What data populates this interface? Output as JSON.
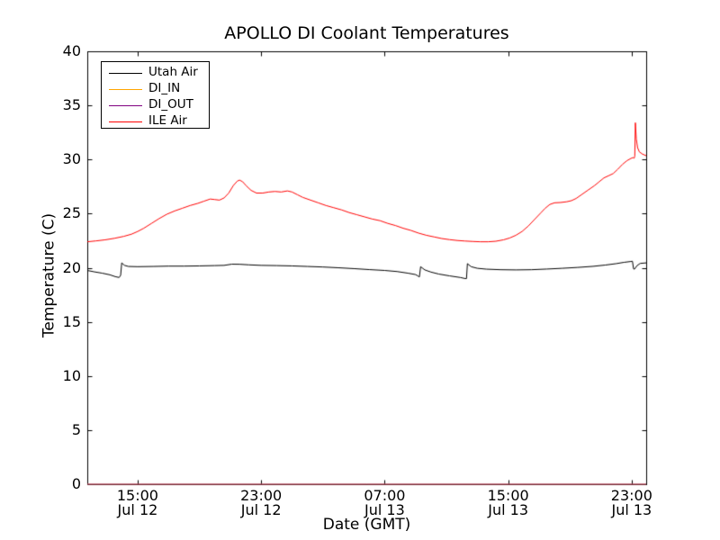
{
  "window": {
    "background": "#ffffff"
  },
  "chart_data": {
    "type": "line",
    "title": "APOLLO DI Coolant Temperatures",
    "xlabel": "Date (GMT)",
    "ylabel": "Temperature (C)",
    "ylim": [
      0,
      40
    ],
    "x_unit": "hours since Jul 12 12:00 GMT",
    "xlim_hours": [
      -0.26,
      35.94
    ],
    "grid": false,
    "legend_position": "upper left",
    "y_ticks": [
      0,
      5,
      10,
      15,
      20,
      25,
      30,
      35,
      40
    ],
    "x_ticks": [
      {
        "t": 3,
        "time": "15:00",
        "date": "Jul 12"
      },
      {
        "t": 11,
        "time": "23:00",
        "date": "Jul 12"
      },
      {
        "t": 19,
        "time": "07:00",
        "date": "Jul 13"
      },
      {
        "t": 27,
        "time": "15:00",
        "date": "Jul 13"
      },
      {
        "t": 35,
        "time": "23:00",
        "date": "Jul 13"
      }
    ],
    "series": [
      {
        "name": "Utah Air",
        "color": "#000000",
        "points": [
          [
            -0.26,
            19.75
          ],
          [
            0.2,
            19.62
          ],
          [
            0.7,
            19.5
          ],
          [
            1.2,
            19.35
          ],
          [
            1.55,
            19.18
          ],
          [
            1.8,
            19.1
          ],
          [
            1.9,
            19.3
          ],
          [
            1.97,
            20.45
          ],
          [
            2.15,
            20.22
          ],
          [
            2.4,
            20.12
          ],
          [
            3,
            20.1
          ],
          [
            4,
            20.12
          ],
          [
            5,
            20.15
          ],
          [
            6,
            20.15
          ],
          [
            7,
            20.17
          ],
          [
            8,
            20.2
          ],
          [
            8.6,
            20.22
          ],
          [
            9.1,
            20.33
          ],
          [
            9.6,
            20.32
          ],
          [
            10.2,
            20.27
          ],
          [
            11,
            20.22
          ],
          [
            12,
            20.2
          ],
          [
            13,
            20.17
          ],
          [
            14,
            20.12
          ],
          [
            15,
            20.07
          ],
          [
            16,
            20.0
          ],
          [
            17,
            19.92
          ],
          [
            18,
            19.83
          ],
          [
            19,
            19.75
          ],
          [
            19.8,
            19.65
          ],
          [
            20.5,
            19.5
          ],
          [
            21,
            19.37
          ],
          [
            21.18,
            19.22
          ],
          [
            21.25,
            19.15
          ],
          [
            21.33,
            20.1
          ],
          [
            21.6,
            19.8
          ],
          [
            22,
            19.6
          ],
          [
            22.5,
            19.42
          ],
          [
            23.2,
            19.25
          ],
          [
            23.9,
            19.1
          ],
          [
            24.22,
            19.0
          ],
          [
            24.3,
            19.0
          ],
          [
            24.36,
            20.38
          ],
          [
            24.6,
            20.1
          ],
          [
            25,
            19.95
          ],
          [
            25.6,
            19.87
          ],
          [
            26.5,
            19.82
          ],
          [
            27.5,
            19.8
          ],
          [
            28.5,
            19.82
          ],
          [
            29.5,
            19.88
          ],
          [
            30.5,
            19.95
          ],
          [
            31.5,
            20.03
          ],
          [
            32.5,
            20.13
          ],
          [
            33.3,
            20.25
          ],
          [
            34,
            20.38
          ],
          [
            34.5,
            20.5
          ],
          [
            34.9,
            20.57
          ],
          [
            35.05,
            20.6
          ],
          [
            35.12,
            19.9
          ],
          [
            35.18,
            19.87
          ],
          [
            35.35,
            20.2
          ],
          [
            35.55,
            20.4
          ],
          [
            35.94,
            20.45
          ]
        ]
      },
      {
        "name": "DI_IN",
        "color": "#ffa500",
        "points": [
          [
            -0.26,
            0
          ],
          [
            35.94,
            0
          ]
        ]
      },
      {
        "name": "DI_OUT",
        "color": "#800080",
        "points": [
          [
            -0.26,
            0
          ],
          [
            35.94,
            0
          ]
        ]
      },
      {
        "name": "ILE Air",
        "color": "#ff0000",
        "points": [
          [
            -0.26,
            22.4
          ],
          [
            0.3,
            22.48
          ],
          [
            0.9,
            22.58
          ],
          [
            1.5,
            22.72
          ],
          [
            2.1,
            22.9
          ],
          [
            2.6,
            23.1
          ],
          [
            3,
            23.35
          ],
          [
            3.4,
            23.65
          ],
          [
            3.9,
            24.1
          ],
          [
            4.4,
            24.55
          ],
          [
            4.9,
            24.95
          ],
          [
            5.4,
            25.25
          ],
          [
            5.9,
            25.5
          ],
          [
            6.4,
            25.75
          ],
          [
            6.9,
            25.95
          ],
          [
            7.3,
            26.15
          ],
          [
            7.7,
            26.35
          ],
          [
            8,
            26.3
          ],
          [
            8.3,
            26.25
          ],
          [
            8.6,
            26.45
          ],
          [
            8.9,
            26.9
          ],
          [
            9.2,
            27.6
          ],
          [
            9.45,
            28.0
          ],
          [
            9.6,
            28.1
          ],
          [
            9.8,
            27.95
          ],
          [
            10.05,
            27.55
          ],
          [
            10.35,
            27.15
          ],
          [
            10.7,
            26.9
          ],
          [
            11.1,
            26.9
          ],
          [
            11.5,
            27.0
          ],
          [
            11.9,
            27.05
          ],
          [
            12.3,
            27.0
          ],
          [
            12.7,
            27.1
          ],
          [
            13,
            27.0
          ],
          [
            13.35,
            26.75
          ],
          [
            13.7,
            26.5
          ],
          [
            14.2,
            26.25
          ],
          [
            14.7,
            26.0
          ],
          [
            15.2,
            25.75
          ],
          [
            15.7,
            25.55
          ],
          [
            16.2,
            25.35
          ],
          [
            16.7,
            25.1
          ],
          [
            17.2,
            24.9
          ],
          [
            17.7,
            24.7
          ],
          [
            18.2,
            24.5
          ],
          [
            18.7,
            24.35
          ],
          [
            19.2,
            24.1
          ],
          [
            19.7,
            23.9
          ],
          [
            20.2,
            23.65
          ],
          [
            20.7,
            23.45
          ],
          [
            21.2,
            23.2
          ],
          [
            21.7,
            23.0
          ],
          [
            22.2,
            22.85
          ],
          [
            22.7,
            22.7
          ],
          [
            23.2,
            22.6
          ],
          [
            23.7,
            22.52
          ],
          [
            24.2,
            22.47
          ],
          [
            24.7,
            22.43
          ],
          [
            25.2,
            22.4
          ],
          [
            25.7,
            22.4
          ],
          [
            26.2,
            22.45
          ],
          [
            26.7,
            22.58
          ],
          [
            27.1,
            22.75
          ],
          [
            27.5,
            23.0
          ],
          [
            27.9,
            23.35
          ],
          [
            28.3,
            23.85
          ],
          [
            28.7,
            24.45
          ],
          [
            29.1,
            25.05
          ],
          [
            29.4,
            25.5
          ],
          [
            29.7,
            25.85
          ],
          [
            30,
            26.0
          ],
          [
            30.4,
            26.03
          ],
          [
            30.8,
            26.1
          ],
          [
            31.1,
            26.2
          ],
          [
            31.4,
            26.4
          ],
          [
            31.8,
            26.8
          ],
          [
            32.2,
            27.2
          ],
          [
            32.6,
            27.6
          ],
          [
            32.9,
            27.95
          ],
          [
            33.2,
            28.3
          ],
          [
            33.5,
            28.5
          ],
          [
            33.8,
            28.7
          ],
          [
            34.1,
            29.1
          ],
          [
            34.4,
            29.55
          ],
          [
            34.7,
            29.9
          ],
          [
            34.95,
            30.1
          ],
          [
            35.08,
            30.18
          ],
          [
            35.16,
            30.12
          ],
          [
            35.2,
            30.3
          ],
          [
            35.24,
            33.4
          ],
          [
            35.3,
            31.9
          ],
          [
            35.38,
            31.1
          ],
          [
            35.5,
            30.7
          ],
          [
            35.7,
            30.5
          ],
          [
            35.94,
            30.35
          ]
        ]
      }
    ]
  }
}
